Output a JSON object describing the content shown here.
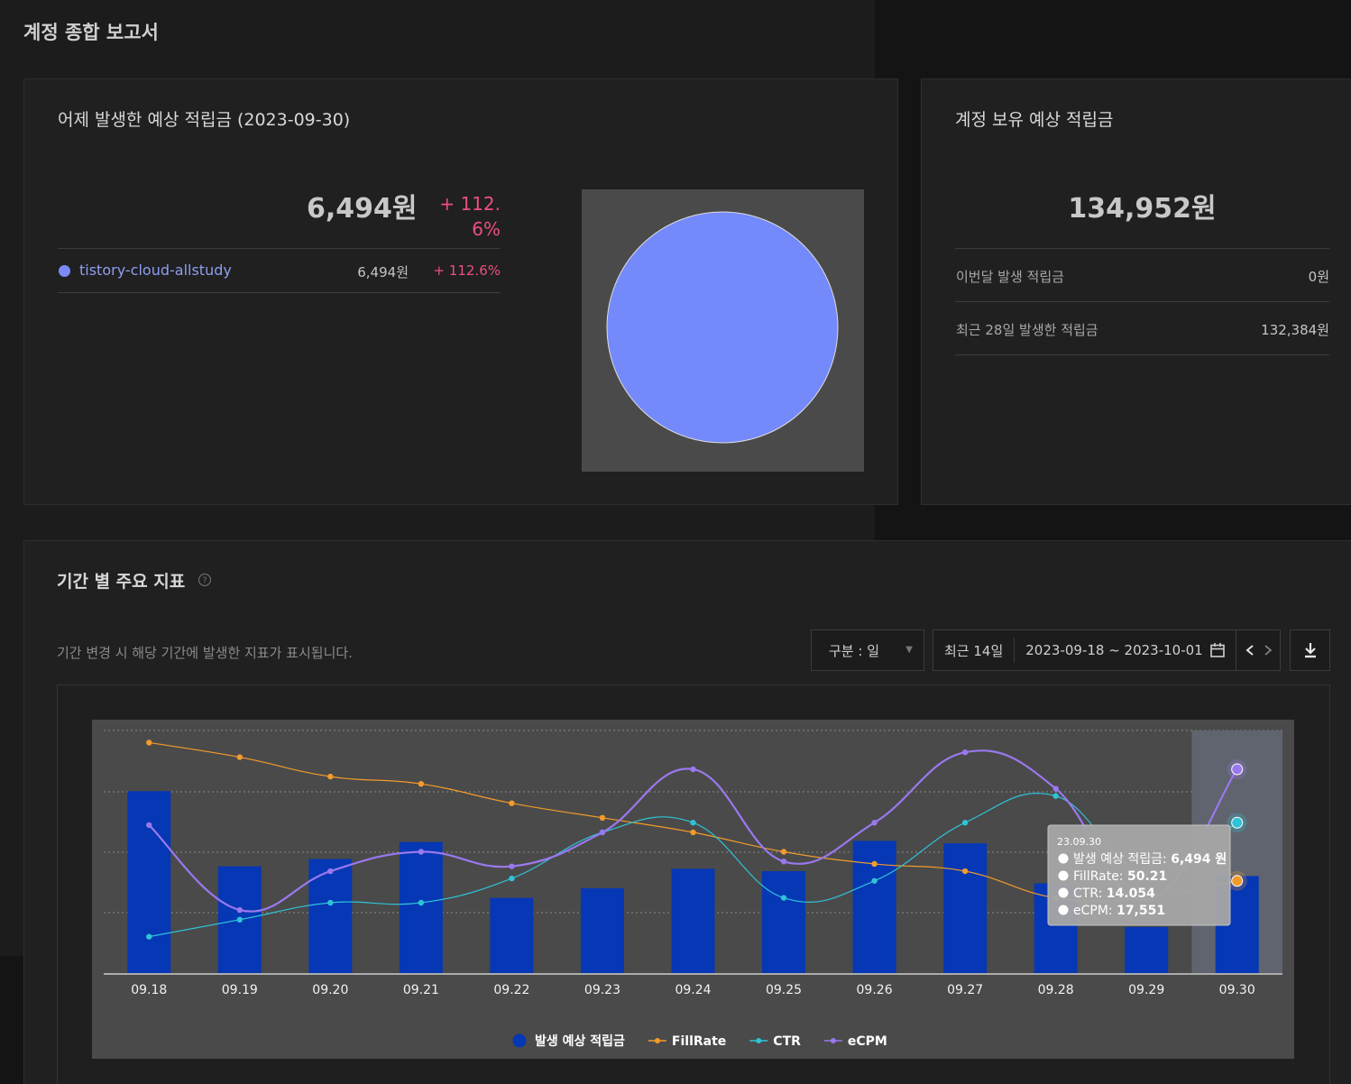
{
  "page": {
    "title": "계정 종합 보고서"
  },
  "yesterday": {
    "title": "어제 발생한 예상 적립금 (2023-09-30)",
    "amount": "6,494원",
    "change_line1": "+ 112.",
    "change_line2": "6%",
    "site": {
      "name": "tistory-cloud-allstudy",
      "amount": "6,494원",
      "change": "+ 112.6%"
    },
    "pie_share": 1.0,
    "pie_color": "#7489fa"
  },
  "account": {
    "title": "계정 보유 예상 적립금",
    "amount": "134,952원",
    "rows": [
      {
        "label": "이번달 발생 적립금",
        "value": "0원"
      },
      {
        "label": "최근 28일 발생한 적립금",
        "value": "132,384원"
      }
    ]
  },
  "metrics": {
    "title": "기간 별 주요 지표",
    "help_icon": "question-circle-icon",
    "description": "기간 변경 시 해당 기간에 발생한 지표가 표시됩니다.",
    "granularity_label": "구분 : 일",
    "range_preset": "최근 14일",
    "date_range": "2023-09-18 ~ 2023-10-01",
    "icons": {
      "calendar": "calendar-icon",
      "prev": "chevron-left-icon",
      "next": "chevron-right-icon",
      "download": "download-icon",
      "dropdown": "caret-down-icon"
    }
  },
  "chart_data": {
    "type": "bar",
    "categories": [
      "09.18",
      "09.19",
      "09.20",
      "09.21",
      "09.22",
      "09.23",
      "09.24",
      "09.25",
      "09.26",
      "09.27",
      "09.28",
      "09.29",
      "09.30"
    ],
    "series": [
      {
        "name": "발생 예상 적립금",
        "kind": "bar",
        "color": "#0637b4",
        "values": [
          0.75,
          0.44,
          0.47,
          0.54,
          0.31,
          0.35,
          0.43,
          0.42,
          0.545,
          0.535,
          0.37,
          0.19,
          0.4
        ]
      },
      {
        "name": "FillRate",
        "kind": "line",
        "color": "#f39b2a",
        "values": [
          0.95,
          0.89,
          0.81,
          0.78,
          0.7,
          0.64,
          0.58,
          0.5,
          0.45,
          0.42,
          0.31,
          0.31,
          0.38
        ]
      },
      {
        "name": "CTR",
        "kind": "line",
        "color": "#2ec3d8",
        "values": [
          0.15,
          0.22,
          0.29,
          0.29,
          0.39,
          0.58,
          0.62,
          0.31,
          0.38,
          0.62,
          0.73,
          0.41,
          0.62
        ]
      },
      {
        "name": "eCPM",
        "kind": "line",
        "color": "#9a78ee",
        "values": [
          0.61,
          0.26,
          0.42,
          0.5,
          0.44,
          0.58,
          0.84,
          0.46,
          0.62,
          0.91,
          0.76,
          0.3,
          0.84
        ]
      }
    ],
    "highlight_index": 12,
    "tooltip": {
      "date": "23.09.30",
      "rows": [
        {
          "label": "발생 예상 적립금: ",
          "value": "6,494 원"
        },
        {
          "label": "FillRate: ",
          "value": "50.21"
        },
        {
          "label": "CTR: ",
          "value": "14.054"
        },
        {
          "label": "eCPM: ",
          "value": "17,551"
        }
      ]
    },
    "grid": true,
    "legend_position": "bottom"
  }
}
